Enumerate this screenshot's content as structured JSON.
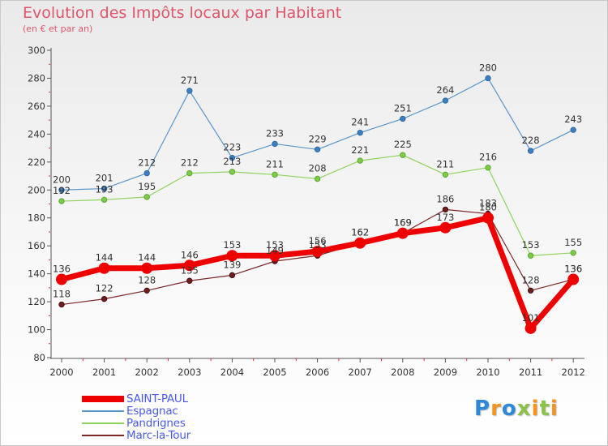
{
  "chart_data": {
    "type": "line",
    "title": "Evolution des Impôts locaux par Habitant",
    "subtitle": "(en € et par an)",
    "xlabel": "",
    "ylabel": "",
    "x": [
      "2000",
      "2001",
      "2002",
      "2003",
      "2004",
      "2005",
      "2006",
      "2007",
      "2008",
      "2009",
      "2010",
      "2011",
      "2012"
    ],
    "ylim": [
      80,
      300
    ],
    "yticks": [
      80,
      100,
      120,
      140,
      160,
      180,
      200,
      220,
      240,
      260,
      280,
      300
    ],
    "yticks_labels": [
      "80",
      "100",
      "120",
      "140",
      "160",
      "180",
      "200",
      "220",
      "240",
      "260",
      "280",
      "300"
    ],
    "grid": false,
    "legend_position": "bottom-left",
    "series": [
      {
        "name": "Espagnac",
        "color": "#5a96cc",
        "values": [
          200,
          201,
          212,
          271,
          223,
          233,
          229,
          241,
          251,
          264,
          280,
          228,
          243
        ],
        "labels": [
          "200",
          "201",
          "212",
          "271",
          "223",
          "233",
          "229",
          "241",
          "251",
          "264",
          "280",
          "228",
          "243"
        ]
      },
      {
        "name": "Pandrignes",
        "color": "#8ed45c",
        "values": [
          192,
          193,
          195,
          212,
          213,
          211,
          208,
          221,
          225,
          211,
          216,
          153,
          155
        ],
        "labels": [
          "192",
          "193",
          "195",
          "212",
          "213",
          "211",
          "208",
          "221",
          "225",
          "211",
          "216",
          "153",
          "155"
        ]
      },
      {
        "name": "Marc-la-Tour",
        "color": "#7d2828",
        "values": [
          118,
          122,
          128,
          135,
          139,
          149,
          153,
          162,
          169,
          186,
          183,
          128,
          136
        ],
        "labels": [
          "118",
          "122",
          "128",
          "135",
          "139",
          "149",
          "153",
          "162",
          "169",
          "186",
          "183",
          "128",
          "136"
        ]
      },
      {
        "name": "SAINT-PAUL",
        "color": "#ee0000",
        "values": [
          136,
          144,
          144,
          146,
          153,
          153,
          156,
          162,
          169,
          173,
          180,
          101,
          136
        ],
        "labels": [
          "136",
          "144",
          "144",
          "146",
          "153",
          "153",
          "156",
          "162",
          "169",
          "173",
          "180",
          "101",
          "136"
        ]
      }
    ],
    "legend_order": [
      "SAINT-PAUL",
      "Espagnac",
      "Pandrignes",
      "Marc-la-Tour"
    ]
  },
  "brand": {
    "letters": [
      "P",
      "r",
      "o",
      "x",
      "i",
      "t",
      "i"
    ],
    "colors": [
      "#2e88d8",
      "#f39320",
      "#2e88d8",
      "#8bc34a",
      "#f39320",
      "#8bc34a",
      "#f39320"
    ]
  }
}
